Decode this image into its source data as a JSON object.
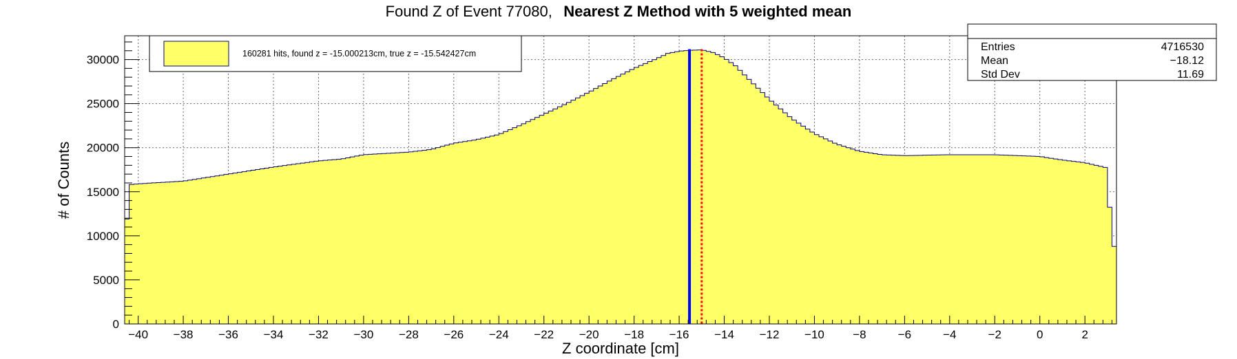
{
  "title": {
    "prefix": "Found Z of Event 77080,",
    "bold": "Nearest Z Method with 5 weighted mean"
  },
  "legend": {
    "text": "160281 hits, found z = -15.000213cm, true z = -15.542427cm",
    "swatch_color": "#ffff66"
  },
  "stats": {
    "rows": [
      {
        "label": "Entries",
        "value": "4716530"
      },
      {
        "label": "Mean",
        "value": "−18.12"
      },
      {
        "label": "Std Dev",
        "value": "11.69"
      }
    ]
  },
  "chart_data": {
    "type": "histogram",
    "xlabel": "Z coordinate [cm]",
    "ylabel": "# of Counts",
    "xlim": [
      -40.6,
      3.4
    ],
    "ylim": [
      0,
      32700
    ],
    "grid": true,
    "fill_color": "#ffff66",
    "line_color": "#00007f",
    "x_ticks": [
      -40,
      -38,
      -36,
      -34,
      -32,
      -30,
      -28,
      -26,
      -24,
      -22,
      -20,
      -18,
      -16,
      -14,
      -12,
      -10,
      -8,
      -6,
      -4,
      -2,
      0,
      2
    ],
    "y_ticks": [
      0,
      5000,
      10000,
      15000,
      20000,
      25000,
      30000
    ],
    "bin_width": 0.2,
    "profile_points": [
      [
        -40.6,
        8000
      ],
      [
        -40.4,
        15800
      ],
      [
        -40,
        15900
      ],
      [
        -38,
        16200
      ],
      [
        -36,
        17000
      ],
      [
        -34,
        17800
      ],
      [
        -32,
        18500
      ],
      [
        -31,
        18700
      ],
      [
        -30,
        19200
      ],
      [
        -28,
        19500
      ],
      [
        -27,
        19800
      ],
      [
        -26,
        20500
      ],
      [
        -25,
        20900
      ],
      [
        -24,
        21500
      ],
      [
        -23,
        22600
      ],
      [
        -22,
        23800
      ],
      [
        -21,
        25000
      ],
      [
        -20,
        26300
      ],
      [
        -19,
        27700
      ],
      [
        -18,
        29000
      ],
      [
        -17,
        30100
      ],
      [
        -16.5,
        30700
      ],
      [
        -16,
        30950
      ],
      [
        -15.5,
        31050
      ],
      [
        -15,
        31100
      ],
      [
        -14.5,
        30800
      ],
      [
        -14,
        30200
      ],
      [
        -13.5,
        29300
      ],
      [
        -13,
        28000
      ],
      [
        -12,
        25500
      ],
      [
        -11,
        23300
      ],
      [
        -10,
        21600
      ],
      [
        -9,
        20400
      ],
      [
        -8,
        19600
      ],
      [
        -7,
        19200
      ],
      [
        -6,
        19100
      ],
      [
        -4,
        19200
      ],
      [
        -2,
        19200
      ],
      [
        0,
        19000
      ],
      [
        1,
        18600
      ],
      [
        2,
        18300
      ],
      [
        3,
        17700
      ],
      [
        3.2,
        8800
      ]
    ],
    "lines": [
      {
        "name": "true z",
        "x": -15.542427,
        "color": "#0000ff",
        "style": "solid"
      },
      {
        "name": "found z",
        "x": -15.000213,
        "color": "#ff0000",
        "style": "dotted"
      }
    ]
  }
}
